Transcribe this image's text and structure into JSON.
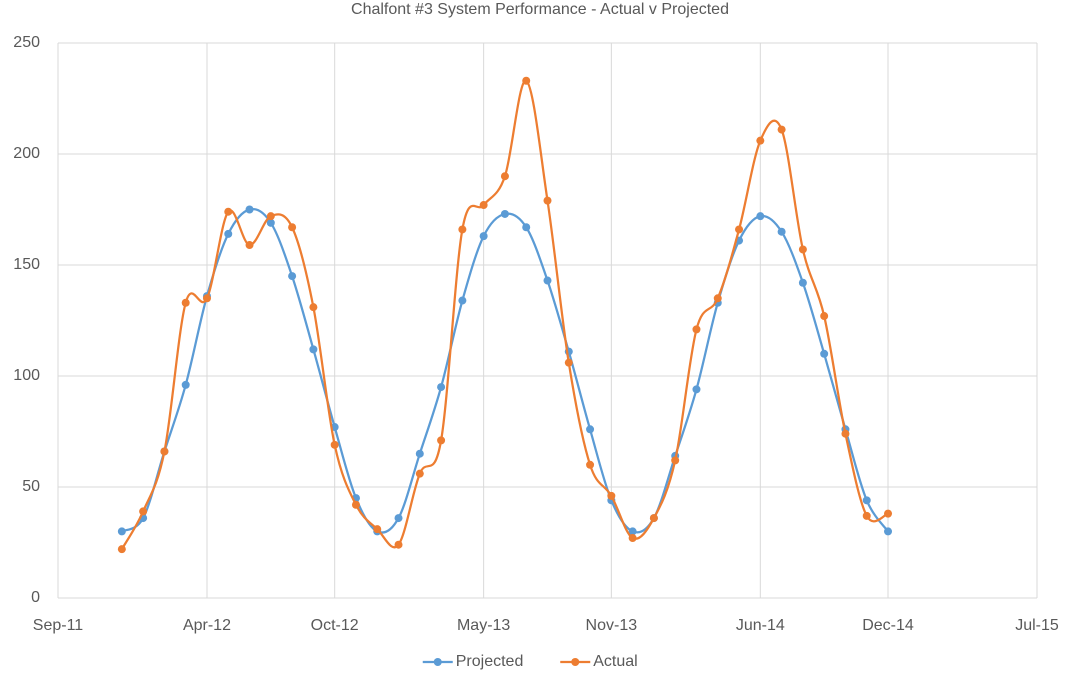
{
  "chart_data": {
    "type": "line",
    "title": "Chalfont #3 System Performance - Actual v Projected",
    "x": [
      "2011-12",
      "2012-01",
      "2012-02",
      "2012-03",
      "2012-04",
      "2012-05",
      "2012-06",
      "2012-07",
      "2012-08",
      "2012-09",
      "2012-10",
      "2012-11",
      "2012-12",
      "2013-01",
      "2013-02",
      "2013-03",
      "2013-04",
      "2013-05",
      "2013-06",
      "2013-07",
      "2013-08",
      "2013-09",
      "2013-10",
      "2013-11",
      "2013-12",
      "2014-01",
      "2014-02",
      "2014-03",
      "2014-04",
      "2014-05",
      "2014-06",
      "2014-07",
      "2014-08",
      "2014-09",
      "2014-10",
      "2014-11",
      "2014-12"
    ],
    "series": [
      {
        "name": "Projected",
        "color": "#5b9bd5",
        "values": [
          30,
          36,
          66,
          96,
          136,
          164,
          175,
          169,
          145,
          112,
          77,
          45,
          30,
          36,
          65,
          95,
          134,
          163,
          173,
          167,
          143,
          111,
          76,
          44,
          30,
          36,
          64,
          94,
          133,
          161,
          172,
          165,
          142,
          110,
          76,
          44,
          30
        ]
      },
      {
        "name": "Actual",
        "color": "#ed7d31",
        "values": [
          22,
          39,
          66,
          133,
          135,
          174,
          159,
          172,
          167,
          131,
          69,
          42,
          31,
          24,
          56,
          71,
          166,
          177,
          190,
          233,
          179,
          106,
          60,
          46,
          27,
          36,
          62,
          121,
          135,
          166,
          206,
          211,
          157,
          127,
          74,
          37,
          38
        ]
      }
    ],
    "xlim": [
      "2011-09",
      "2015-07"
    ],
    "xticks": [
      {
        "value": "2011-09",
        "label": "Sep-11"
      },
      {
        "value": "2012-04",
        "label": "Apr-12"
      },
      {
        "value": "2012-10",
        "label": "Oct-12"
      },
      {
        "value": "2013-05",
        "label": "May-13"
      },
      {
        "value": "2013-11",
        "label": "Nov-13"
      },
      {
        "value": "2014-06",
        "label": "Jun-14"
      },
      {
        "value": "2014-12",
        "label": "Dec-14"
      },
      {
        "value": "2015-07",
        "label": "Jul-15"
      }
    ],
    "ylim": [
      0,
      250
    ],
    "yticks": [
      0,
      50,
      100,
      150,
      200,
      250
    ],
    "grid": true,
    "legend": "bottom",
    "smooth": true
  }
}
